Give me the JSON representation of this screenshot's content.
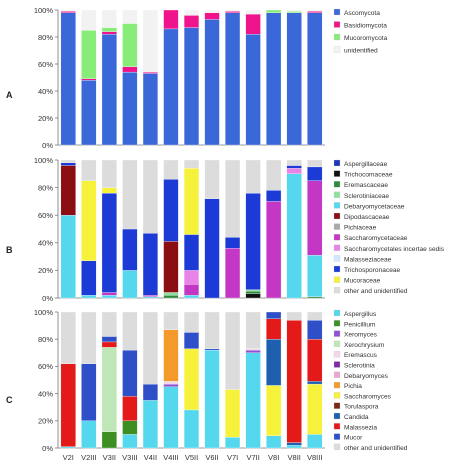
{
  "colors": {
    "Ascomycota": "#3b68d9",
    "Basidiomycota": "#ef148c",
    "Mucoromycota": "#88ec78",
    "unidentified": "#f2f2f2",
    "Aspergillaceae": "#1f37b4",
    "Trichocomaceae": "#111111",
    "Eremascaceae": "#2e8b3e",
    "Sclerotiniaceae": "#8fe19f",
    "Debaryomycetaceae": "#55d8ee",
    "Dipodascaceae": "#8b0f12",
    "Pichiaceae": "#a9a9a9",
    "Saccharomycetaceae": "#c437c4",
    "Saccharomycetales incertae sedis": "#e884e8",
    "Malasseziaceae": "#cfe8ff",
    "Trichosporonaceae": "#1c3bd6",
    "Mucoraceae": "#f6f23c",
    "other and unidentified": "#dcdcdc",
    "Aspergillus": "#55d8ee",
    "Penicillium": "#3d8f23",
    "Xeromyces": "#8f52d1",
    "Xerochrysium": "#bfe6b6",
    "Eremascus": "#f2d7e8",
    "Sclerotinia": "#7f2aa3",
    "Debaryomyces": "#e9a6cf",
    "Pichia": "#f39a2a",
    "Saccharomyces": "#f6f23c",
    "Torulaspora": "#7a2a12",
    "Candida": "#1f5fb0",
    "Malassezia": "#e41a1a",
    "Mucor": "#2e4fc7"
  },
  "chart_data": [
    {
      "type": "bar",
      "stacked": true,
      "panel_label": "A",
      "yticks": [
        "0%",
        "20%",
        "40%",
        "60%",
        "80%",
        "100%"
      ],
      "ylim": [
        0,
        100
      ],
      "categories": [
        "V2I",
        "V2III",
        "V3II",
        "V3III",
        "V4II",
        "V4III",
        "V5II",
        "V6II",
        "V7I",
        "V7II",
        "V8I",
        "V8II",
        "V8III"
      ],
      "series": [
        {
          "name": "Ascomycota",
          "values": [
            98,
            48,
            82,
            54,
            53,
            86,
            87,
            93,
            98,
            82,
            98,
            98,
            98
          ]
        },
        {
          "name": "Basidiomycota",
          "values": [
            1,
            1,
            2,
            4,
            1,
            14,
            9,
            5,
            1,
            15,
            0,
            0,
            1
          ]
        },
        {
          "name": "Mucoromycota",
          "values": [
            0,
            36,
            3,
            32,
            0,
            0,
            0,
            0,
            0,
            0,
            2,
            1,
            0
          ]
        },
        {
          "name": "unidentified",
          "values": [
            1,
            15,
            13,
            10,
            46,
            0,
            4,
            2,
            1,
            3,
            0,
            1,
            1
          ]
        }
      ],
      "legend": [
        "Ascomycota",
        "Basidiomycota",
        "Mucoromycota",
        "unidentified"
      ],
      "legend_placement": "right"
    },
    {
      "type": "bar",
      "stacked": true,
      "panel_label": "B",
      "yticks": [
        "0%",
        "20%",
        "40%",
        "60%",
        "80%",
        "100%"
      ],
      "ylim": [
        0,
        100
      ],
      "categories": [
        "V2I",
        "V2III",
        "V3II",
        "V3III",
        "V4II",
        "V4III",
        "V5II",
        "V6II",
        "V7I",
        "V7II",
        "V8I",
        "V8II",
        "V8III"
      ],
      "series": [
        {
          "name": "Aspergillaceae",
          "values": [
            0,
            0,
            0,
            0,
            0,
            0,
            0,
            0,
            0,
            0,
            0,
            0,
            0
          ]
        },
        {
          "name": "Trichocomaceae",
          "values": [
            0,
            0,
            0,
            0,
            0,
            0,
            0,
            0,
            0,
            3,
            0,
            0,
            0
          ]
        },
        {
          "name": "Eremascaceae",
          "values": [
            0,
            0,
            0,
            0,
            0,
            2,
            0,
            0,
            0,
            2,
            0,
            0,
            1
          ]
        },
        {
          "name": "Sclerotiniaceae",
          "values": [
            0,
            0,
            0,
            0,
            0,
            2,
            0,
            0,
            0,
            1,
            0,
            0,
            0
          ]
        },
        {
          "name": "Debaryomycetaceae",
          "values": [
            60,
            2,
            2,
            20,
            1,
            0,
            2,
            0,
            0,
            0,
            0,
            90,
            30
          ]
        },
        {
          "name": "Dipodascaceae",
          "values": [
            36,
            0,
            0,
            0,
            0,
            37,
            0,
            0,
            0,
            0,
            0,
            0,
            0
          ]
        },
        {
          "name": "Pichiaceae",
          "values": [
            0,
            0,
            0,
            0,
            0,
            0,
            0,
            0,
            0,
            0,
            0,
            0,
            0
          ]
        },
        {
          "name": "Saccharomycetaceae",
          "values": [
            0,
            0,
            2,
            0,
            1,
            0,
            8,
            0,
            36,
            0,
            70,
            0,
            54
          ]
        },
        {
          "name": "Saccharomycetales incertae sedis",
          "values": [
            0,
            0,
            0,
            0,
            0,
            0,
            10,
            0,
            0,
            0,
            0,
            4,
            0
          ]
        },
        {
          "name": "Malasseziaceae",
          "values": [
            0,
            0,
            0,
            0,
            0,
            0,
            0,
            0,
            0,
            0,
            0,
            0,
            0
          ]
        },
        {
          "name": "Trichosporonaceae",
          "values": [
            2,
            25,
            72,
            30,
            45,
            45,
            26,
            72,
            8,
            70,
            8,
            2,
            10
          ]
        },
        {
          "name": "Mucoraceae",
          "values": [
            0,
            58,
            4,
            0,
            0,
            0,
            48,
            0,
            0,
            0,
            0,
            0,
            0
          ]
        },
        {
          "name": "other and unidentified",
          "values": [
            2,
            15,
            20,
            50,
            53,
            14,
            6,
            28,
            56,
            24,
            22,
            4,
            5
          ]
        }
      ],
      "legend": [
        "Aspergillaceae",
        "Trichocomaceae",
        "Eremascaceae",
        "Sclerotiniaceae",
        "Debaryomycetaceae",
        "Dipodascaceae",
        "Pichiaceae",
        "Saccharomycetaceae",
        "Saccharomycetales incertae sedis",
        "Malasseziaceae",
        "Trichosporonaceae",
        "Mucoraceae",
        "other and unidentified"
      ],
      "legend_placement": "right"
    },
    {
      "type": "bar",
      "stacked": true,
      "panel_label": "C",
      "yticks": [
        "0%",
        "20%",
        "40%",
        "60%",
        "80%",
        "100%"
      ],
      "ylim": [
        0,
        100
      ],
      "categories": [
        "V2I",
        "V2III",
        "V3II",
        "V3III",
        "V4II",
        "V4III",
        "V5II",
        "V6II",
        "V7I",
        "V7II",
        "V8I",
        "V8II",
        "V8III"
      ],
      "series": [
        {
          "name": "Aspergillus",
          "values": [
            1,
            20,
            0,
            10,
            35,
            45,
            28,
            72,
            8,
            70,
            9,
            2,
            10
          ]
        },
        {
          "name": "Penicillium",
          "values": [
            0,
            0,
            12,
            10,
            0,
            0,
            0,
            0,
            0,
            0,
            0,
            0,
            0
          ]
        },
        {
          "name": "Xeromyces",
          "values": [
            0,
            0,
            0,
            0,
            0,
            2,
            0,
            0,
            0,
            2,
            0,
            0,
            0
          ]
        },
        {
          "name": "Xerochrysium",
          "values": [
            0,
            0,
            62,
            0,
            0,
            0,
            0,
            0,
            0,
            0,
            0,
            0,
            0
          ]
        },
        {
          "name": "Eremascus",
          "values": [
            0,
            0,
            0,
            0,
            0,
            2,
            0,
            0,
            0,
            1,
            0,
            0,
            0
          ]
        },
        {
          "name": "Sclerotinia",
          "values": [
            0,
            0,
            0,
            0,
            0,
            0,
            0,
            0,
            0,
            0,
            0,
            0,
            0
          ]
        },
        {
          "name": "Debaryomyces",
          "values": [
            0,
            0,
            0,
            0,
            0,
            0,
            0,
            0,
            0,
            0,
            0,
            0,
            0
          ]
        },
        {
          "name": "Pichia",
          "values": [
            0,
            0,
            0,
            0,
            0,
            38,
            0,
            0,
            0,
            0,
            0,
            0,
            0
          ]
        },
        {
          "name": "Saccharomyces",
          "values": [
            0,
            0,
            0,
            0,
            0,
            0,
            45,
            0,
            35,
            0,
            37,
            0,
            37
          ]
        },
        {
          "name": "Torulaspora",
          "values": [
            0,
            0,
            0,
            0,
            0,
            0,
            0,
            0,
            0,
            0,
            0,
            0,
            0
          ]
        },
        {
          "name": "Candida",
          "values": [
            0,
            0,
            0,
            0,
            0,
            0,
            0,
            0,
            0,
            0,
            34,
            2,
            2
          ]
        },
        {
          "name": "Malassezia",
          "values": [
            61,
            0,
            4,
            18,
            0,
            0,
            0,
            0,
            0,
            0,
            15,
            90,
            31
          ]
        },
        {
          "name": "Mucor",
          "values": [
            0,
            42,
            4,
            34,
            12,
            0,
            12,
            1,
            0,
            0,
            5,
            0,
            14
          ]
        },
        {
          "name": "other and unidentified",
          "values": [
            38,
            38,
            18,
            28,
            53,
            13,
            15,
            27,
            57,
            27,
            0,
            6,
            6
          ]
        }
      ],
      "legend": [
        "Aspergillus",
        "Penicillium",
        "Xeromyces",
        "Xerochrysium",
        "Eremascus",
        "Sclerotinia",
        "Debaryomyces",
        "Pichia",
        "Saccharomyces",
        "Torulaspora",
        "Candida",
        "Malassezia",
        "Mucor",
        "other and unidentified"
      ],
      "legend_placement": "right"
    }
  ]
}
